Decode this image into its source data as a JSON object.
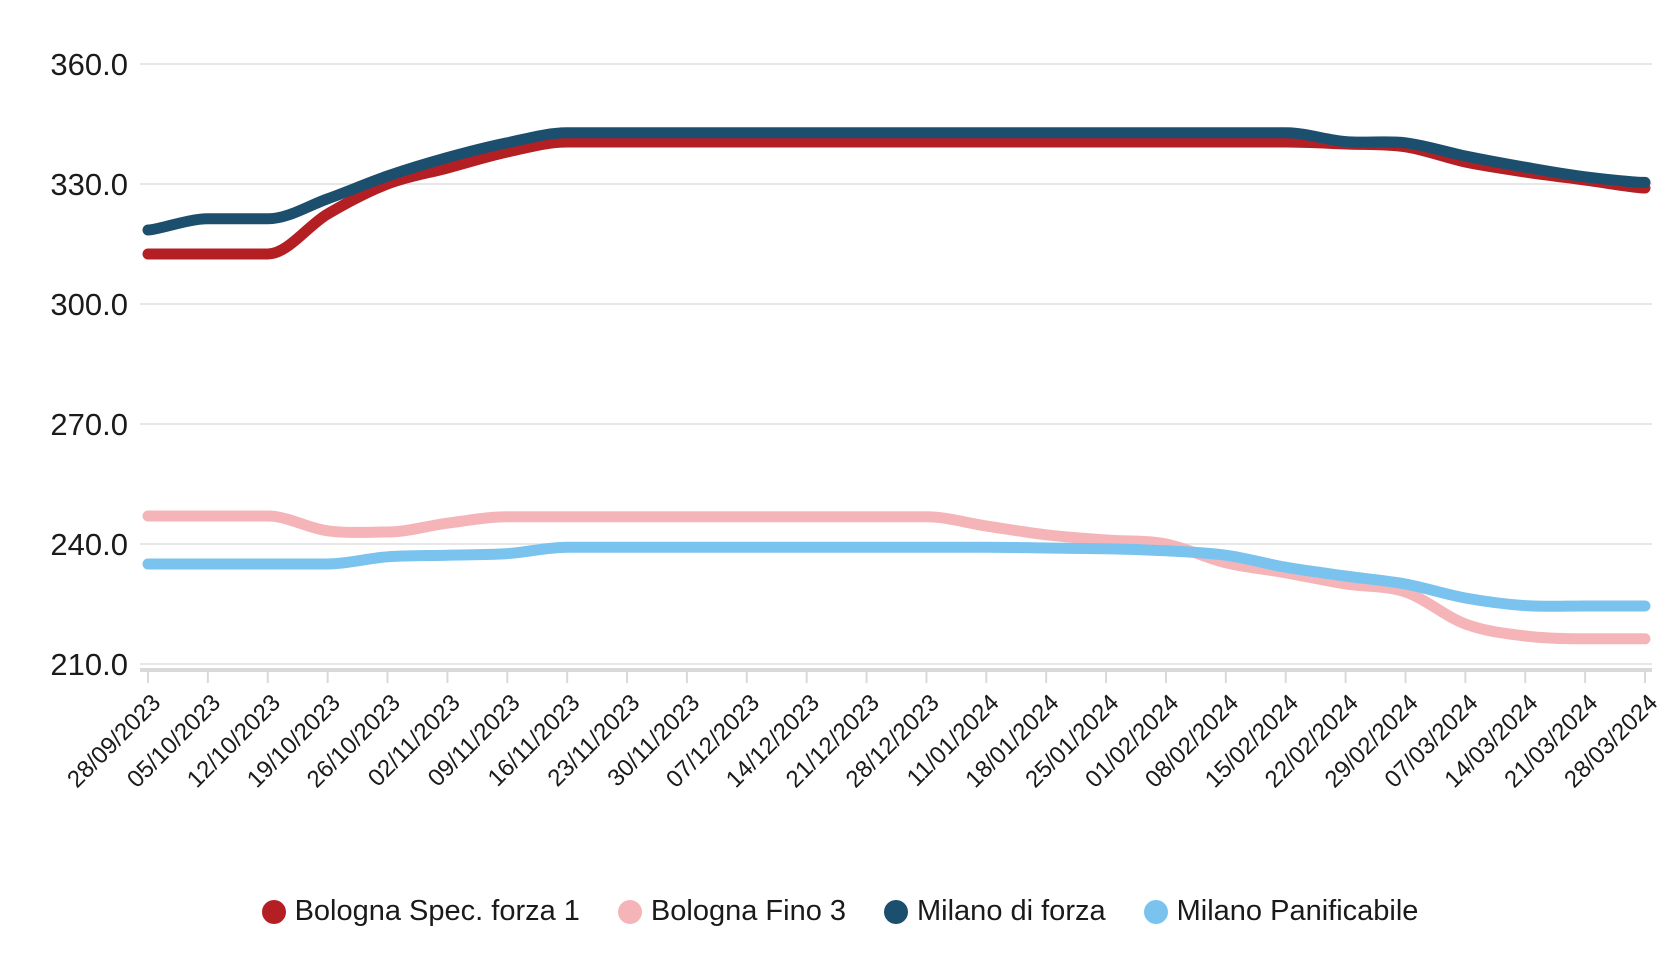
{
  "chart_data": {
    "type": "line",
    "smooth": true,
    "background_color": "#ffffff",
    "grid_color": "#e7e7e7",
    "axis_line_color": "#d9d9d9",
    "label_color": "#1b1b1b",
    "grid_on": true,
    "legend_position": "bottom-center",
    "title": "",
    "xlabel": "",
    "ylabel": "",
    "ylim": [
      210,
      360
    ],
    "y_tick_step": 30,
    "y_tick_labels": [
      "360.0",
      "330.0",
      "300.0",
      "270.0",
      "240.0",
      "210.0"
    ],
    "categories": [
      "28/09/2023",
      "05/10/2023",
      "12/10/2023",
      "19/10/2023",
      "26/10/2023",
      "02/11/2023",
      "09/11/2023",
      "16/11/2023",
      "23/11/2023",
      "30/11/2023",
      "07/12/2023",
      "14/12/2023",
      "21/12/2023",
      "28/12/2023",
      "11/01/2024",
      "18/01/2024",
      "25/01/2024",
      "01/02/2024",
      "08/02/2024",
      "15/02/2024",
      "22/02/2024",
      "29/02/2024",
      "07/03/2024",
      "14/03/2024",
      "21/03/2024",
      "28/03/2024"
    ],
    "series": [
      {
        "name": "Bologna Spec. forza 1",
        "color": "#b41f24",
        "values": [
          312.5,
          312.5,
          312.5,
          322.5,
          330,
          334,
          338,
          340.5,
          340.5,
          340.5,
          340.5,
          340.5,
          340.5,
          340.5,
          340.5,
          340.5,
          340.5,
          340.5,
          340.5,
          340.5,
          340,
          339.3,
          335.5,
          333,
          331,
          329
        ]
      },
      {
        "name": "Bologna Fino 3",
        "color": "#f5b5b8",
        "values": [
          247,
          247,
          247,
          243.3,
          243,
          245.2,
          246.8,
          246.8,
          246.8,
          246.8,
          246.8,
          246.8,
          246.8,
          246.8,
          244.5,
          242.3,
          241,
          240,
          235.3,
          232.8,
          230,
          228,
          220,
          217,
          216.3,
          216.3
        ]
      },
      {
        "name": "Milano di forza",
        "color": "#1c4f6e",
        "values": [
          318.5,
          321.3,
          321.3,
          326.3,
          332,
          336.6,
          340.3,
          342.8,
          342.8,
          342.8,
          342.8,
          342.8,
          342.8,
          342.8,
          342.8,
          342.8,
          342.8,
          342.8,
          342.8,
          342.8,
          340.6,
          340.3,
          337,
          334.2,
          331.8,
          330.4
        ]
      },
      {
        "name": "Milano Panificabile",
        "color": "#7ac3ee",
        "values": [
          235,
          235,
          235,
          235,
          236.8,
          237.2,
          237.6,
          239.2,
          239.2,
          239.2,
          239.2,
          239.2,
          239.2,
          239.2,
          239.2,
          239,
          238.8,
          238.3,
          237.2,
          234.2,
          232,
          230,
          226.5,
          224.6,
          224.5,
          224.5
        ]
      }
    ]
  }
}
